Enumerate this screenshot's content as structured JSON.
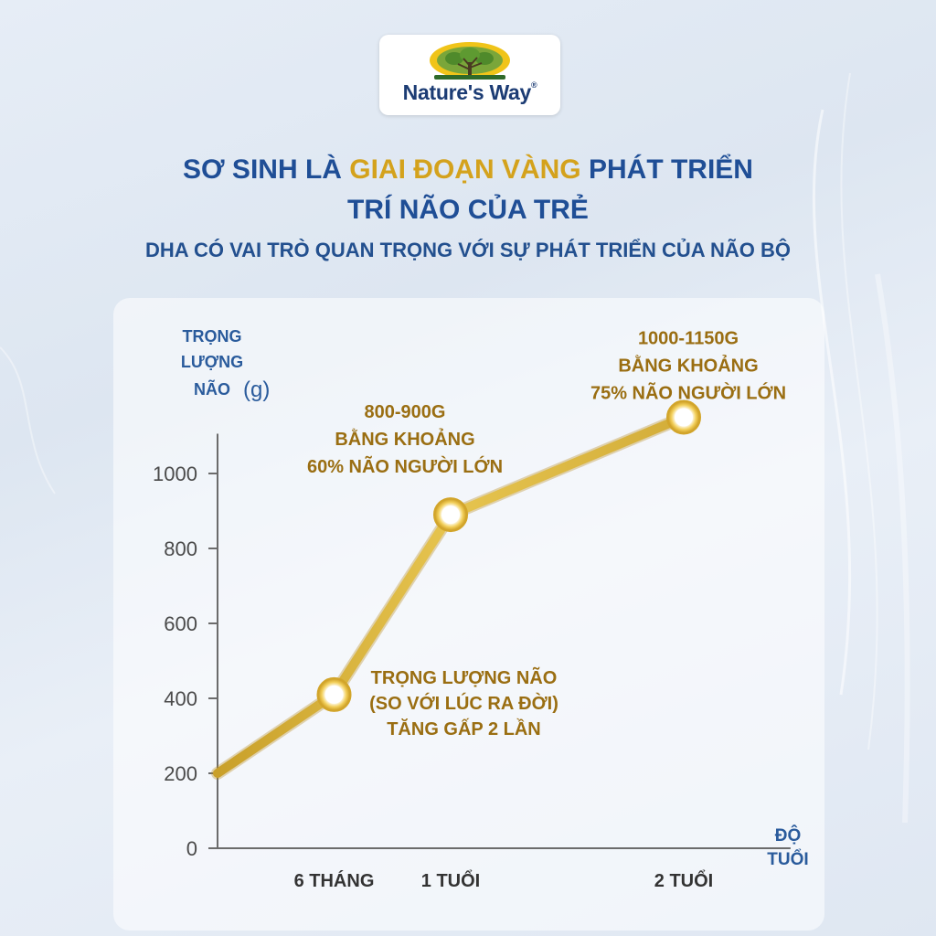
{
  "brand": {
    "name": "Nature's Way",
    "mark": "®"
  },
  "heading": {
    "line1_blue1": "SƠ SINH LÀ ",
    "line1_gold": "GIAI ĐOẠN VÀNG",
    "line1_blue2": " PHÁT TRIỂN",
    "line2_blue": "TRÍ NÃO CỦA TRẺ",
    "subtitle": "DHA CÓ VAI TRÒ QUAN TRỌNG VỚI SỰ PHÁT TRIỂN CỦA NÃO BỘ"
  },
  "colors": {
    "primary": "#1f4e96",
    "accent": "#d4a21c",
    "line": "#dcb63e",
    "annotation": "#9a6e12"
  },
  "chart_data": {
    "type": "line",
    "ylabel_lines": [
      "TRỌNG",
      "LƯỢNG",
      "NÃO"
    ],
    "ylabel_unit": "(g)",
    "xlabel_lines": [
      "ĐỘ",
      "TUỔI"
    ],
    "ylim": [
      0,
      1150
    ],
    "yticks": [
      {
        "value": 1000,
        "label": "1000"
      },
      {
        "value": 800,
        "label": "800"
      },
      {
        "value": 600,
        "label": "600"
      },
      {
        "value": 400,
        "label": "400"
      },
      {
        "value": 200,
        "label": "200"
      },
      {
        "value": 0,
        "label": "0"
      }
    ],
    "xticks": [
      {
        "value": 6,
        "label": "6 THÁNG"
      },
      {
        "value": 12,
        "label": "1 TUỔI"
      },
      {
        "value": 24,
        "label": "2 TUỔI"
      }
    ],
    "xlim": [
      0,
      29.5
    ],
    "series": [
      {
        "points": [
          {
            "x": 0,
            "y": 200,
            "marker": false
          },
          {
            "x": 6,
            "y": 410,
            "marker": true
          },
          {
            "x": 12,
            "y": 890,
            "marker": true
          },
          {
            "x": 24,
            "y": 1150,
            "marker": true
          }
        ]
      }
    ],
    "annotations": [
      {
        "point": 1,
        "lines": [
          "TRỌNG LƯỢNG NÃO",
          "(SO VỚI LÚC RA ĐỜI)",
          "TĂNG GẤP 2 LẦN"
        ]
      },
      {
        "point": 2,
        "lines": [
          "800-900G",
          "BẰNG KHOẢNG",
          "60% NÃO NGƯỜI LỚN"
        ]
      },
      {
        "point": 3,
        "lines": [
          "1000-1150G",
          "BẰNG KHOẢNG",
          "75% NÃO NGƯỜI LỚN"
        ]
      }
    ],
    "grid": false
  }
}
